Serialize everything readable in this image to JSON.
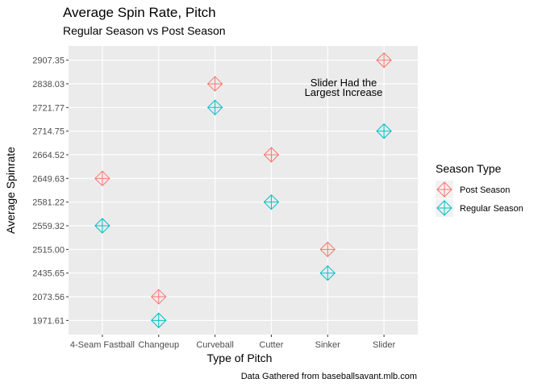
{
  "chart_data": {
    "type": "scatter",
    "title": "Average Spin Rate, Pitch",
    "subtitle": "Regular Season vs Post Season",
    "xlabel": "Type of Pitch",
    "ylabel": "Average Spinrate",
    "caption": "Data Gathered from baseballsavant.mlb.com",
    "categories": [
      "4-Seam Fastball",
      "Changeup",
      "Curveball",
      "Cutter",
      "Sinker",
      "Slider"
    ],
    "y_levels": [
      "1971.61",
      "2073.56",
      "2435.65",
      "2515.00",
      "2559.32",
      "2581.22",
      "2649.63",
      "2664.52",
      "2714.75",
      "2721.77",
      "2838.03",
      "2907.35"
    ],
    "y_scale": "discrete",
    "grid": true,
    "legend": {
      "title": "Season Type",
      "placement": "right",
      "entries": [
        "Post Season",
        "Regular Season"
      ]
    },
    "series": [
      {
        "name": "Post Season",
        "color": "#F8766D",
        "values": [
          "2649.63",
          "2073.56",
          "2838.03",
          "2664.52",
          "2515.00",
          "2907.35"
        ]
      },
      {
        "name": "Regular Season",
        "color": "#00BFC4",
        "values": [
          "2559.32",
          "1971.61",
          "2721.77",
          "2581.22",
          "2435.65",
          "2714.75"
        ]
      }
    ],
    "annotation": {
      "lines": [
        "Slider Had the",
        "Largest Increase"
      ]
    }
  }
}
